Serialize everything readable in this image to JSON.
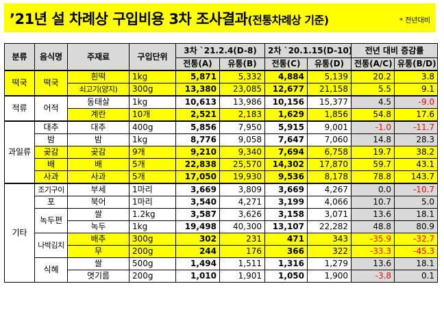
{
  "title": {
    "main": "’21년 설 차례상 구입비용 3차 조사결과",
    "sub": "(전통차례상 기준)",
    "note": "* 전년대비"
  },
  "headers": {
    "category": "분류",
    "food": "음식명",
    "ingredient": "주재료",
    "unit": "구입단위",
    "round3": "3차 `21.2.4(D-8)",
    "round2": "2차 `20.1.15(D-10)",
    "change": "전년 대비 증감률",
    "trad_a": "전통(A)",
    "dist_b": "유통(B)",
    "trad_c": "전통(C)",
    "dist_d": "유통(D)",
    "trad_ac": "전통(A/C)",
    "dist_bd": "유통(B/D)"
  },
  "rows": [
    {
      "cat": "떡국",
      "food": "떡국",
      "ing": "흰떡",
      "unit": "1kg",
      "a": "5,871",
      "b": "5,332",
      "c": "4,884",
      "d": "5,139",
      "ac": "20.2",
      "bd": "3.8"
    },
    {
      "ing": "쇠고기(양지)",
      "unit": "300g",
      "a": "13,380",
      "b": "23,085",
      "c": "12,677",
      "d": "21,158",
      "ac": "5.5",
      "bd": "9.1"
    },
    {
      "cat": "적류",
      "food": "어적",
      "ing": "동태살",
      "unit": "1kg",
      "a": "10,613",
      "b": "13,986",
      "c": "10,156",
      "d": "15,377",
      "ac": "4.5",
      "bd": "-9.0"
    },
    {
      "ing": "계란",
      "unit": "10개",
      "a": "2,521",
      "b": "2,183",
      "c": "1,629",
      "d": "1,856",
      "ac": "54.8",
      "bd": "17.6"
    },
    {
      "cat": "과일류",
      "food": "대추",
      "ing": "대추",
      "unit": "400g",
      "a": "5,856",
      "b": "7,950",
      "c": "5,915",
      "d": "9,001",
      "ac": "-1.0",
      "bd": "-11.7"
    },
    {
      "food": "밤",
      "ing": "밤",
      "unit": "1kg",
      "a": "8,776",
      "b": "9,058",
      "c": "7,647",
      "d": "7,060",
      "ac": "14.8",
      "bd": "28.3"
    },
    {
      "food": "곶감",
      "ing": "곶감",
      "unit": "9개",
      "a": "9,210",
      "b": "9,340",
      "c": "7,694",
      "d": "6,758",
      "ac": "19.7",
      "bd": "38.2"
    },
    {
      "food": "배",
      "ing": "배",
      "unit": "5개",
      "a": "22,838",
      "b": "25,570",
      "c": "14,302",
      "d": "17,870",
      "ac": "59.7",
      "bd": "43.1"
    },
    {
      "food": "사과",
      "ing": "사과",
      "unit": "5개",
      "a": "17,050",
      "b": "19,930",
      "c": "9,536",
      "d": "8,178",
      "ac": "78.8",
      "bd": "143.7"
    },
    {
      "cat": "기타",
      "food": "조기구이",
      "ing": "부세",
      "unit": "1마리",
      "a": "3,669",
      "b": "3,809",
      "c": "3,669",
      "d": "4,267",
      "ac": "0.0",
      "bd": "-10.7"
    },
    {
      "food": "포",
      "ing": "북어",
      "unit": "1마리",
      "a": "3,540",
      "b": "4,271",
      "c": "3,199",
      "d": "4,066",
      "ac": "10.7",
      "bd": "5.0"
    },
    {
      "food": "녹두편",
      "ing": "쌀",
      "unit": "1.2kg",
      "a": "3,587",
      "b": "3,626",
      "c": "3,158",
      "d": "3,071",
      "ac": "13.6",
      "bd": "18.1"
    },
    {
      "ing": "녹두",
      "unit": "1kg",
      "a": "19,498",
      "b": "40,300",
      "c": "13,107",
      "d": "22,282",
      "ac": "48.8",
      "bd": "80.9"
    },
    {
      "food": "나박김치",
      "ing": "배추",
      "unit": "300g",
      "a": "302",
      "b": "231",
      "c": "471",
      "d": "343",
      "ac": "-35.9",
      "bd": "-32.7"
    },
    {
      "ing": "무",
      "unit": "200g",
      "a": "244",
      "b": "176",
      "c": "366",
      "d": "322",
      "ac": "-33.3",
      "bd": "-45.3"
    },
    {
      "food": "식혜",
      "ing": "쌀",
      "unit": "500g",
      "a": "1,494",
      "b": "1,511",
      "c": "1,316",
      "d": "1,279",
      "ac": "13.6",
      "bd": "18.1"
    },
    {
      "ing": "엿기름",
      "unit": "200g",
      "a": "1,010",
      "b": "1,901",
      "c": "1,050",
      "d": "1,900",
      "ac": "-3.8",
      "bd": "0.1"
    }
  ]
}
